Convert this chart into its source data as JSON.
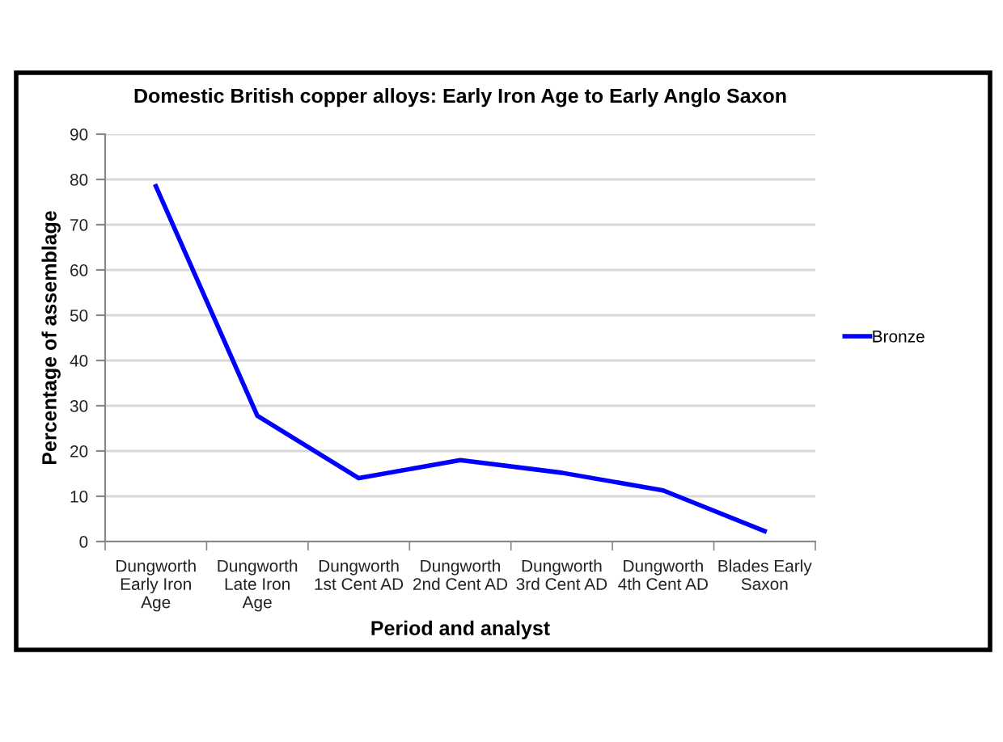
{
  "chart_data": {
    "type": "line",
    "title": "Domestic British copper alloys: Early Iron Age to Early Anglo Saxon",
    "xlabel": "Period and analyst",
    "ylabel": "Percentage of assemblage",
    "categories": [
      "Dungworth\nEarly Iron\nAge",
      "Dungworth\nLate Iron\nAge",
      "Dungworth\n1st Cent AD",
      "Dungworth\n2nd Cent AD",
      "Dungworth\n3rd Cent AD",
      "Dungworth\n4th Cent AD",
      "Blades Early\nSaxon"
    ],
    "series": [
      {
        "name": "Bronze",
        "color": "#0000ff",
        "values": [
          78.5,
          27.8,
          14,
          18,
          15.2,
          11.3,
          2.3
        ]
      }
    ],
    "ylim": [
      0,
      90
    ],
    "yticks": [
      0,
      10,
      20,
      30,
      40,
      50,
      60,
      70,
      80,
      90
    ],
    "grid": "y",
    "legend": "right",
    "marker": "none",
    "line_style": "solid"
  }
}
